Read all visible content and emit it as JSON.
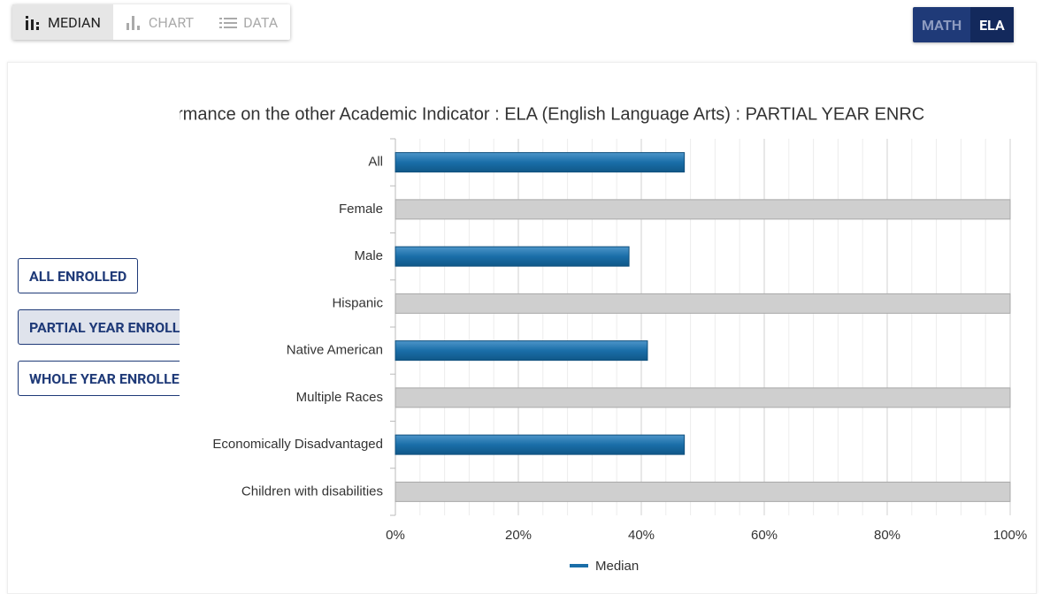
{
  "toolbar": {
    "tabs": [
      "MEDIAN",
      "CHART",
      "DATA"
    ],
    "active_tab": 0
  },
  "subject_toggle": {
    "options": [
      "MATH",
      "ELA"
    ],
    "active": 1
  },
  "enrollment_buttons": [
    "ALL ENROLLED",
    "PARTIAL YEAR ENROLLED",
    "WHOLE YEAR ENROLLED"
  ],
  "chart_data": {
    "type": "hbar",
    "title": "rmance on the other Academic Indicator : ELA (English Language Arts) : PARTIAL YEAR ENRC",
    "categories": [
      "All",
      "Female",
      "Male",
      "Hispanic",
      "Native American",
      "Multiple Races",
      "Economically Disadvantaged",
      "Children with disabilities"
    ],
    "series": [
      {
        "name": "Median",
        "color": "#1a6ea8",
        "values": [
          47,
          100,
          38,
          100,
          41,
          100,
          47,
          100
        ],
        "colors": [
          "#1a6ea8",
          "#cfcfcf",
          "#1a6ea8",
          "#cfcfcf",
          "#1a6ea8",
          "#cfcfcf",
          "#1a6ea8",
          "#cfcfcf"
        ]
      }
    ],
    "xlim": [
      0,
      100
    ],
    "xticks": [
      {
        "value": 0,
        "label": "0%"
      },
      {
        "value": 20,
        "label": "20%"
      },
      {
        "value": 40,
        "label": "40%"
      },
      {
        "value": 60,
        "label": "60%"
      },
      {
        "value": 80,
        "label": "80%"
      },
      {
        "value": 100,
        "label": "100%"
      }
    ],
    "grid": true,
    "minor_grid": true,
    "legend": "bottom"
  }
}
